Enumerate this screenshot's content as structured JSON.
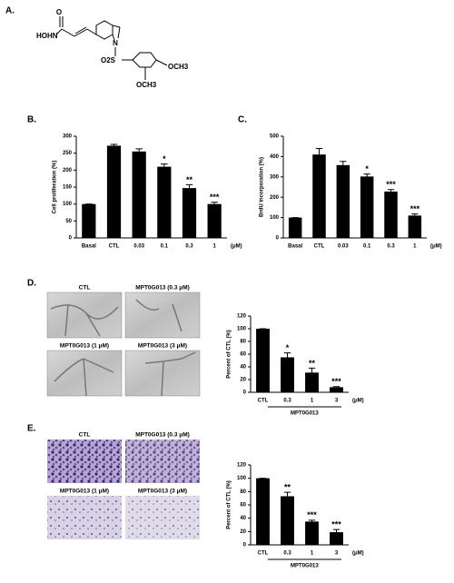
{
  "panel_labels": [
    "A.",
    "B.",
    "C.",
    "D.",
    "E."
  ],
  "structure": {
    "labels": [
      "O",
      "HOHN",
      "N",
      "O2S",
      "OCH3",
      "OCH3"
    ]
  },
  "micrographs": {
    "D": [
      "CTL",
      "MPT0G013 (0.3 μM)",
      "MPT0G013 (1 μM)",
      "MPT0G013 (3 μM)"
    ],
    "E": [
      "CTL",
      "MPT0G013 (0.3 μM)",
      "MPT0G013 (1 μM)",
      "MPT0G013 (3 μM)"
    ]
  },
  "chart_data": [
    {
      "type": "bar",
      "y_label": "Cell proliferation (%)",
      "unit_label": "(μM)",
      "color": "#000000",
      "categories": [
        "Basal",
        "CTL",
        "0.03",
        "0.1",
        "0.3",
        "1"
      ],
      "values": [
        100,
        272,
        255,
        210,
        147,
        100
      ],
      "errors": [
        0,
        4,
        8,
        8,
        10,
        5
      ],
      "significance": [
        null,
        null,
        null,
        "*",
        "**",
        "***"
      ],
      "ylim": [
        0,
        300
      ],
      "yticks": [
        0,
        50,
        100,
        150,
        200,
        250,
        300
      ]
    },
    {
      "type": "bar",
      "y_label": "BrdU incorporation (%)",
      "unit_label": "(μM)",
      "color": "#000000",
      "categories": [
        "Basal",
        "CTL",
        "0.03",
        "0.1",
        "0.3",
        "1"
      ],
      "values": [
        100,
        410,
        358,
        302,
        228,
        110
      ],
      "errors": [
        0,
        30,
        18,
        12,
        10,
        8
      ],
      "significance": [
        null,
        null,
        null,
        "*",
        "***",
        "***"
      ],
      "ylim": [
        0,
        500
      ],
      "yticks": [
        0,
        100,
        200,
        300,
        400,
        500
      ]
    },
    {
      "type": "bar",
      "y_label": "Percent of CTL (%)",
      "unit_label": "(μM)",
      "group_label": "MPT0G013",
      "color": "#000000",
      "categories": [
        "CTL",
        "0.3",
        "1",
        "3"
      ],
      "values": [
        100,
        55,
        31,
        8
      ],
      "errors": [
        0,
        7,
        7,
        1
      ],
      "significance": [
        null,
        "*",
        "**",
        "***"
      ],
      "ylim": [
        0,
        120
      ],
      "yticks": [
        0,
        20,
        40,
        60,
        80,
        100,
        120
      ]
    },
    {
      "type": "bar",
      "y_label": "Percent of CTL (%)",
      "unit_label": "(μM)",
      "group_label": "MPT0G013",
      "color": "#000000",
      "categories": [
        "CTL",
        "0.3",
        "1",
        "3"
      ],
      "values": [
        100,
        73,
        35,
        19
      ],
      "errors": [
        0,
        6,
        2,
        4
      ],
      "significance": [
        null,
        "**",
        "***",
        "***"
      ],
      "ylim": [
        0,
        120
      ],
      "yticks": [
        0,
        20,
        40,
        60,
        80,
        100,
        120
      ]
    }
  ]
}
